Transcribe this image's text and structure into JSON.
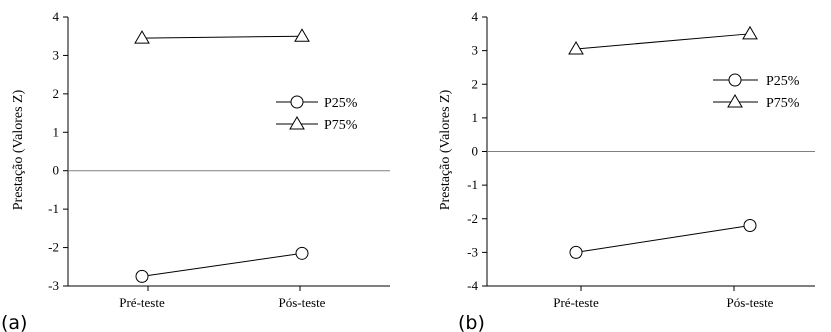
{
  "chart_data": [
    {
      "type": "line",
      "panel_label": "(a)",
      "categories": [
        "Pré-teste",
        "Pós-teste"
      ],
      "ylabel": "Prestação (Valores Z)",
      "ylim": [
        -3,
        4
      ],
      "yticks": [
        "4",
        "3",
        "2",
        "1",
        "0",
        "-1",
        "-2",
        "-3"
      ],
      "reference_line": 0,
      "legend_position": "right",
      "series": [
        {
          "name": "P25%",
          "marker": "circle",
          "values": [
            -2.75,
            -2.15
          ]
        },
        {
          "name": "P75%",
          "marker": "triangle",
          "values": [
            3.45,
            3.5
          ]
        }
      ]
    },
    {
      "type": "line",
      "panel_label": "(b)",
      "categories": [
        "Pré-teste",
        "Pós-teste"
      ],
      "ylabel": "Prestação (Valores Z)",
      "ylim": [
        -4,
        4
      ],
      "yticks": [
        "4",
        "3",
        "2",
        "1",
        "0",
        "-1",
        "-2",
        "-3",
        "-4"
      ],
      "reference_line": 0,
      "legend_position": "top-right",
      "series": [
        {
          "name": "P25%",
          "marker": "circle",
          "values": [
            -3.0,
            -2.2
          ]
        },
        {
          "name": "P75%",
          "marker": "triangle",
          "values": [
            3.05,
            3.5
          ]
        }
      ]
    }
  ]
}
